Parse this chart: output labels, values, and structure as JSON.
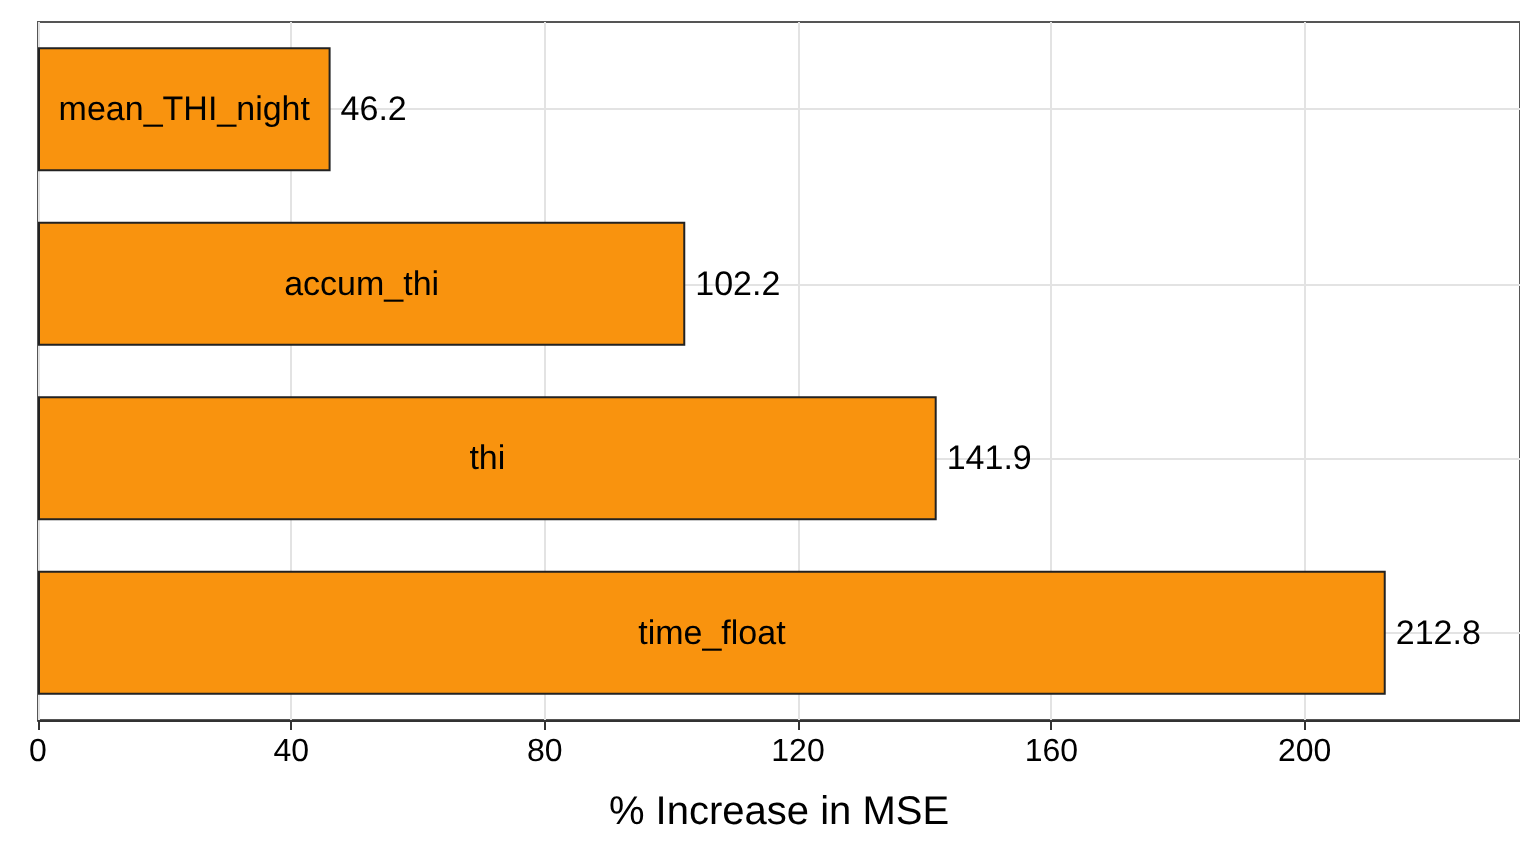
{
  "chart_data": {
    "type": "bar",
    "orientation": "horizontal",
    "xlabel": "% Increase in MSE",
    "categories": [
      "mean_THI_night",
      "accum_thi",
      "thi",
      "time_float"
    ],
    "values": [
      46.2,
      102.2,
      141.9,
      212.8
    ],
    "color": "#f9930e",
    "xlim": [
      0,
      234
    ],
    "xticks": [
      0,
      40,
      80,
      120,
      160,
      200
    ],
    "grid": true,
    "data_labels": true
  }
}
